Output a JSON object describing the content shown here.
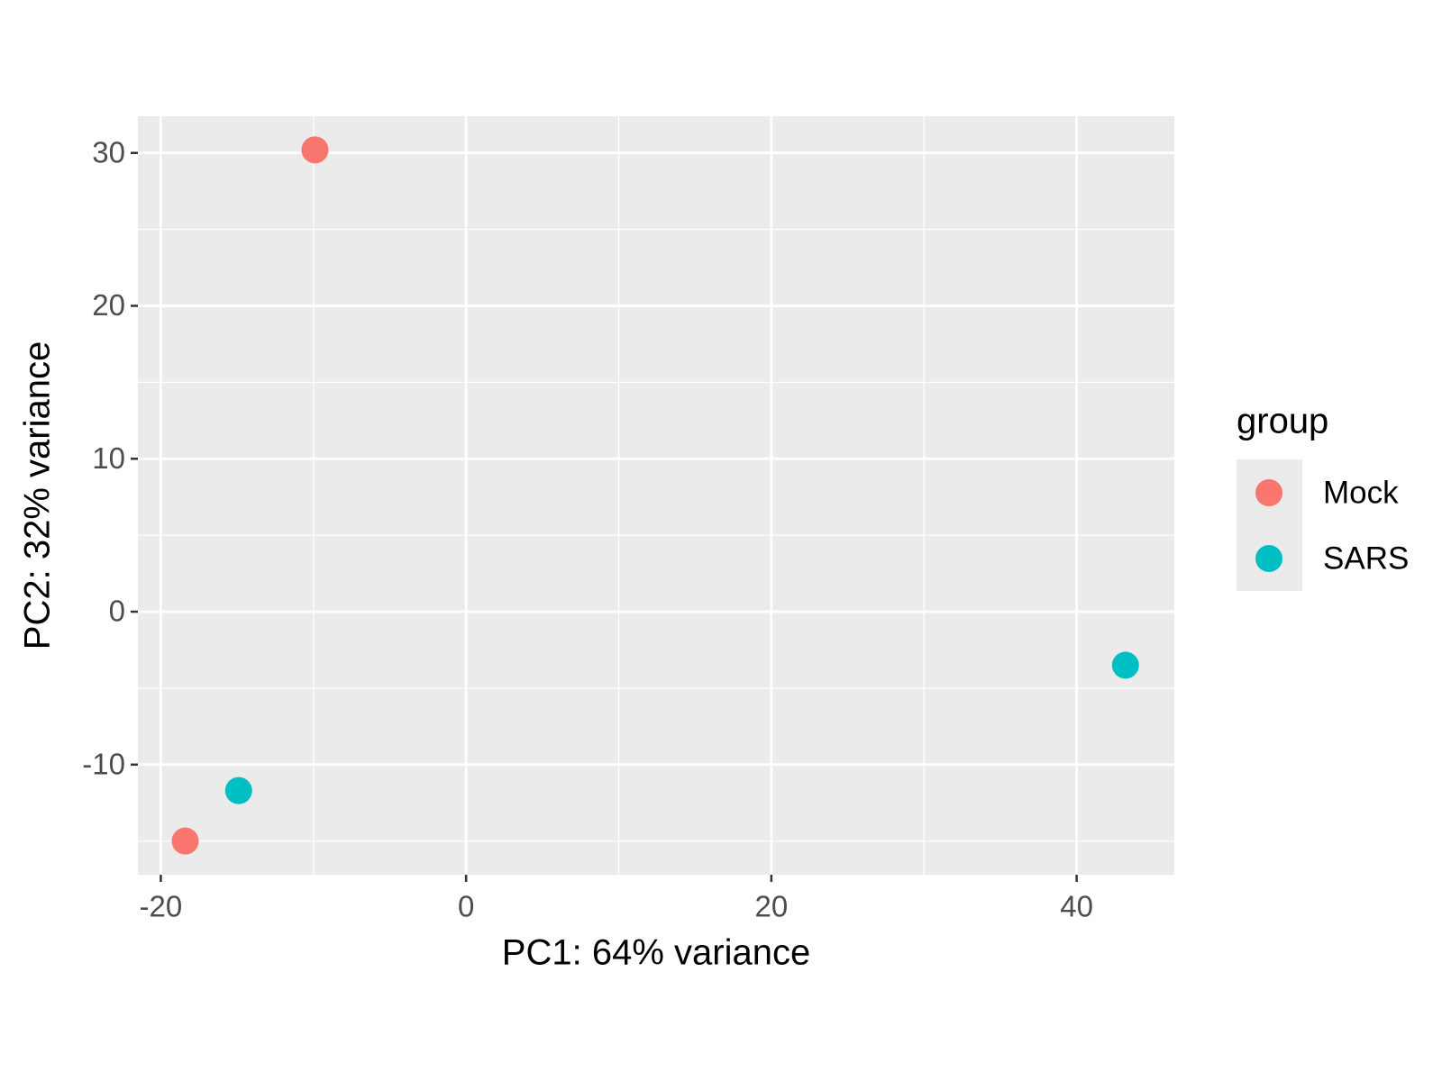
{
  "chart_data": {
    "type": "scatter",
    "x_label": "PC1: 64% variance",
    "y_label": "PC2: 32% variance",
    "legend_title": "group",
    "series": [
      {
        "name": "Mock",
        "color": "#F8766D",
        "x": [
          -9.9,
          -18.4
        ],
        "values": [
          30.2,
          -15.0
        ]
      },
      {
        "name": "SARS",
        "color": "#00BFC4",
        "x": [
          -14.9,
          43.2
        ],
        "values": [
          -11.7,
          -3.5
        ]
      }
    ],
    "xlim": [
      -21.5,
      46.4
    ],
    "ylim": [
      -17.2,
      32.4
    ],
    "xticks": [
      -20,
      0,
      20,
      40
    ],
    "yticks": [
      -10,
      0,
      10,
      20,
      30
    ],
    "minor_xticks": [
      -10,
      10,
      30
    ],
    "minor_yticks": [
      -15,
      -5,
      5,
      15,
      25
    ],
    "grid": true,
    "legend_position": "right"
  }
}
